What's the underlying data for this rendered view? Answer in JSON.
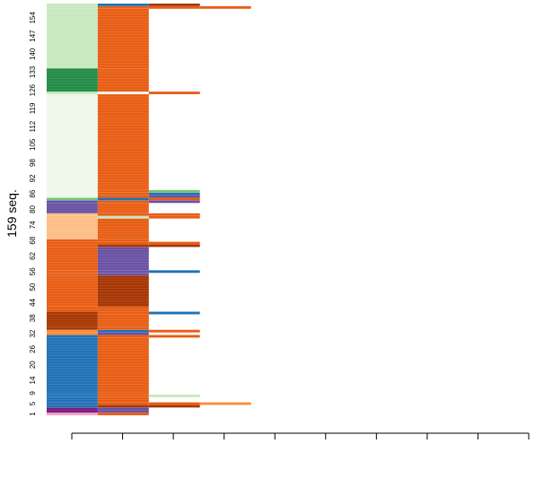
{
  "chart_data": {
    "type": "heatmap",
    "subtype": "sequence index plot",
    "title": "",
    "xlabel": "",
    "ylabel": "159 seq.",
    "n_sequences": 159,
    "n_positions": 9,
    "x_tick_labels": [],
    "y_tick_labels": [
      "1",
      "5",
      "9",
      "14",
      "20",
      "26",
      "32",
      "38",
      "44",
      "50",
      "56",
      "62",
      "68",
      "74",
      "80",
      "86",
      "92",
      "98",
      "105",
      "112",
      "119",
      "126",
      "133",
      "140",
      "147",
      "154"
    ],
    "state_colors": {
      "A": "#E85D14",
      "B": "#2171B5",
      "C": "#6A51A3",
      "D": "#C7E9C0",
      "E": "#A63603",
      "F": "#FDBE85",
      "G": "#EDF8E9",
      "H": "#238B45",
      "I": "#7B1A80",
      "J": "#F4A0C8",
      "K": "#74C476",
      "L": "#FD8D3C"
    },
    "segments": [
      {
        "from": 1,
        "to": 1,
        "states": [
          "J",
          "A"
        ]
      },
      {
        "from": 2,
        "to": 3,
        "states": [
          "I",
          "C"
        ]
      },
      {
        "from": 4,
        "to": 4,
        "states": [
          "B",
          "E",
          "E"
        ]
      },
      {
        "from": 5,
        "to": 5,
        "states": [
          "B",
          "A",
          "A",
          "L"
        ]
      },
      {
        "from": 6,
        "to": 7,
        "states": [
          "B",
          "A"
        ]
      },
      {
        "from": 8,
        "to": 8,
        "states": [
          "B",
          "A",
          "D"
        ]
      },
      {
        "from": 9,
        "to": 30,
        "states": [
          "B",
          "A"
        ]
      },
      {
        "from": 31,
        "to": 31,
        "states": [
          "B",
          "A",
          "A"
        ]
      },
      {
        "from": 32,
        "to": 32,
        "states": [
          "L",
          "C"
        ]
      },
      {
        "from": 33,
        "to": 33,
        "states": [
          "L",
          "B",
          "A"
        ]
      },
      {
        "from": 34,
        "to": 34,
        "states": [
          "E",
          "A"
        ]
      },
      {
        "from": 35,
        "to": 39,
        "states": [
          "E",
          "A"
        ]
      },
      {
        "from": 40,
        "to": 40,
        "states": [
          "E",
          "A",
          "B"
        ]
      },
      {
        "from": 41,
        "to": 42,
        "states": [
          "A",
          "A"
        ]
      },
      {
        "from": 43,
        "to": 54,
        "states": [
          "A",
          "E"
        ]
      },
      {
        "from": 55,
        "to": 55,
        "states": [
          "A",
          "C"
        ]
      },
      {
        "from": 56,
        "to": 56,
        "states": [
          "A",
          "C",
          "B"
        ]
      },
      {
        "from": 57,
        "to": 65,
        "states": [
          "A",
          "C"
        ]
      },
      {
        "from": 66,
        "to": 66,
        "states": [
          "A",
          "E",
          "E"
        ]
      },
      {
        "from": 67,
        "to": 67,
        "states": [
          "A",
          "A",
          "A"
        ]
      },
      {
        "from": 68,
        "to": 68,
        "states": [
          "A",
          "A"
        ]
      },
      {
        "from": 69,
        "to": 76,
        "states": [
          "F",
          "A"
        ]
      },
      {
        "from": 77,
        "to": 77,
        "states": [
          "F",
          "D",
          "A"
        ]
      },
      {
        "from": 78,
        "to": 78,
        "states": [
          "F",
          "A",
          "A"
        ]
      },
      {
        "from": 79,
        "to": 82,
        "states": [
          "C",
          "A"
        ]
      },
      {
        "from": 83,
        "to": 83,
        "states": [
          "C",
          "A",
          "C"
        ]
      },
      {
        "from": 84,
        "to": 84,
        "states": [
          "K",
          "B",
          "A"
        ]
      },
      {
        "from": 85,
        "to": 85,
        "states": [
          "G",
          "A",
          "C"
        ]
      },
      {
        "from": 86,
        "to": 86,
        "states": [
          "G",
          "A",
          "B"
        ]
      },
      {
        "from": 87,
        "to": 87,
        "states": [
          "G",
          "A",
          "K"
        ]
      },
      {
        "from": 88,
        "to": 124,
        "states": [
          "G",
          "A"
        ]
      },
      {
        "from": 125,
        "to": 125,
        "states": [
          "D",
          "G",
          "A"
        ]
      },
      {
        "from": 126,
        "to": 134,
        "states": [
          "H",
          "A"
        ]
      },
      {
        "from": 135,
        "to": 157,
        "states": [
          "D",
          "A"
        ]
      },
      {
        "from": 158,
        "to": 158,
        "states": [
          "D",
          "A",
          "A",
          "A"
        ]
      },
      {
        "from": 159,
        "to": 159,
        "states": [
          "D",
          "B",
          "E"
        ]
      }
    ],
    "grid": false,
    "legend": false
  }
}
